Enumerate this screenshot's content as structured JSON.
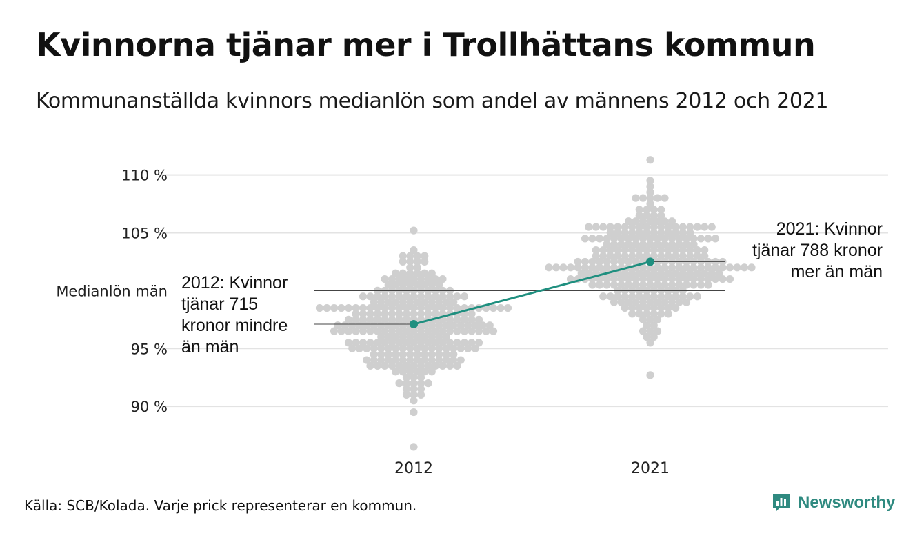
{
  "title": "Kvinnorna tjänar mer i Trollhättans kommun",
  "subtitle": "Kommunanställda kvinnors medianlön som andel av männens 2012 och 2021",
  "source": "Källa: SCB/Kolada. Varje prick representerar en kommun.",
  "brand": {
    "name": "Newsworthy",
    "icon": "newsworthy-logo-icon"
  },
  "colors": {
    "highlight": "#1f8f7f",
    "dots": "#cfcfcf",
    "grid": "#e3e3e3",
    "reference": "#444444",
    "brand": "#2f8a80"
  },
  "chart_data": {
    "type": "scatter",
    "categories": [
      "2012",
      "2021"
    ],
    "ylim": [
      86,
      111.5
    ],
    "yticks": [
      90,
      95,
      105,
      110
    ],
    "ytick_labels": [
      "90 %",
      "95 %",
      "105 %",
      "110 %"
    ],
    "grid": true,
    "reference": {
      "label": "Medianlön män",
      "value": 100
    },
    "distribution": [
      {
        "category": "2012",
        "min": 86.5,
        "max": 105.2,
        "median": 97.2,
        "count": 290
      },
      {
        "category": "2021",
        "min": 92.7,
        "max": 111.3,
        "median": 102.2,
        "count": 290
      }
    ],
    "highlight": {
      "name": "Trollhättan",
      "values": [
        {
          "x": "2012",
          "y": 97.1
        },
        {
          "x": "2021",
          "y": 102.5
        }
      ]
    },
    "annotations": [
      {
        "x": "2012",
        "y": 97.1,
        "lines": [
          "2012: Kvinnor",
          "tjänar 715",
          "kronor mindre",
          "än män"
        ]
      },
      {
        "x": "2021",
        "y": 102.5,
        "lines": [
          "2021: Kvinnor",
          "tjänar 788 kronor",
          "mer än män"
        ]
      }
    ]
  }
}
